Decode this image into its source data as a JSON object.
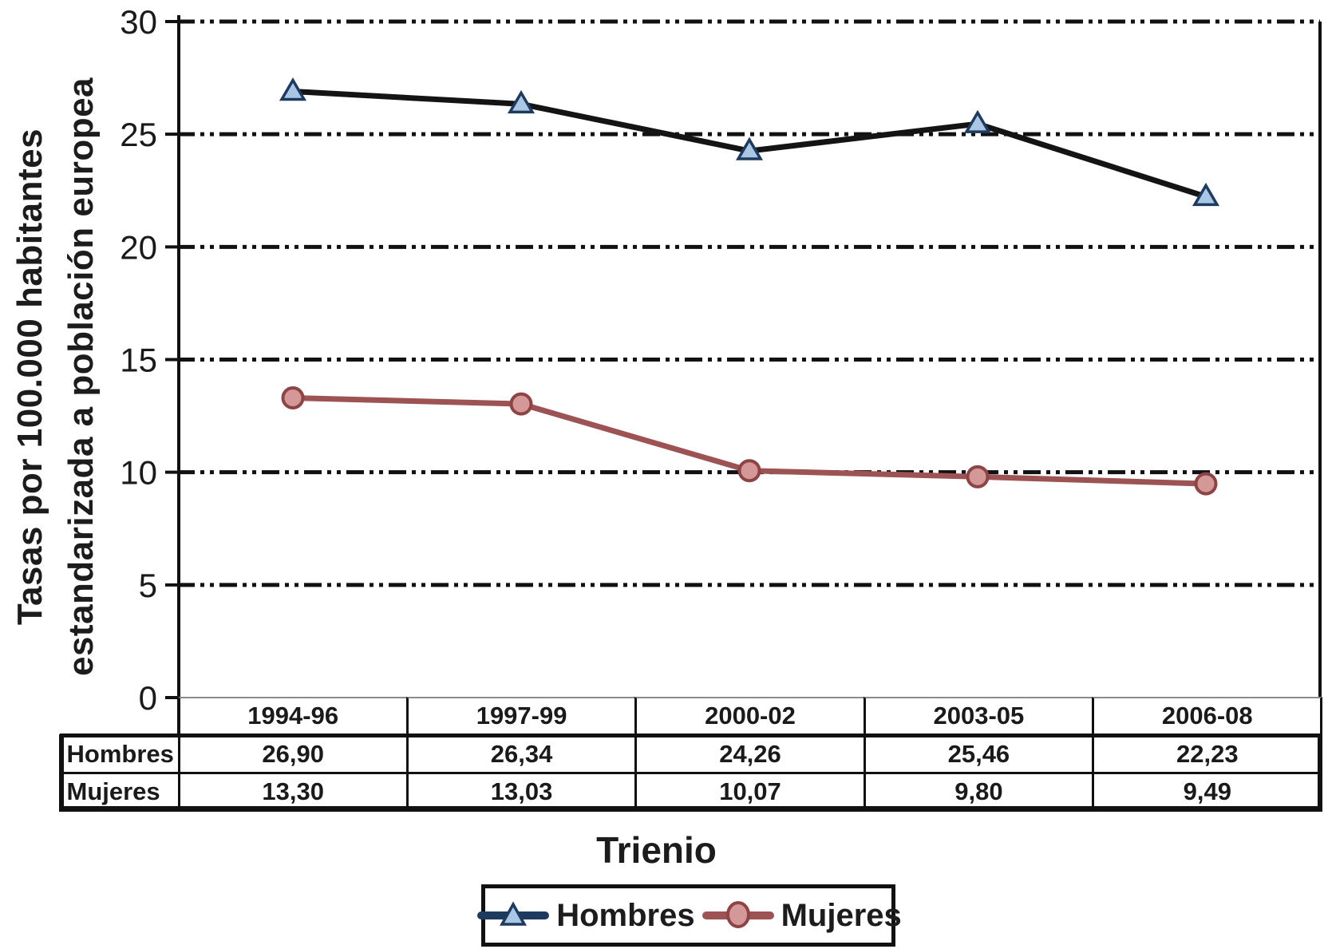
{
  "figure": {
    "y_axis_title_line1": "Tasas por 100.000 habitantes",
    "y_axis_title_line2": "estandarizada a población europea",
    "x_axis_title": "Trienio",
    "background": "#ffffff"
  },
  "chart_data": {
    "type": "line",
    "categories": [
      "1994-96",
      "1997-99",
      "2000-02",
      "2003-05",
      "2006-08"
    ],
    "series": [
      {
        "name": "Hombres",
        "values": [
          26.9,
          26.34,
          24.26,
          25.46,
          22.23
        ],
        "marker": "triangle",
        "line_color": "#141414",
        "legend_line_color": "#1f3a5f",
        "marker_fill": "#a9c7e5",
        "marker_stroke": "#1f3a5f"
      },
      {
        "name": "Mujeres",
        "values": [
          13.3,
          13.03,
          10.07,
          9.8,
          9.49
        ],
        "marker": "circle",
        "line_color": "#9d5353",
        "legend_line_color": "#9d5353",
        "marker_fill": "#d49898",
        "marker_stroke": "#8e4444"
      }
    ],
    "title": "",
    "xlabel": "Trienio",
    "ylabel": "Tasas por 100.000 habitantes estandarizada a población europea",
    "ylim": [
      0,
      30
    ],
    "yticks": [
      0,
      5,
      10,
      15,
      20,
      25,
      30
    ],
    "grid": "horizontal dash-dot black",
    "legend_position": "bottom"
  },
  "table": {
    "row_labels": [
      "Hombres",
      "Mujeres"
    ],
    "rows": [
      [
        "26,90",
        "26,34",
        "24,26",
        "25,46",
        "22,23"
      ],
      [
        "13,30",
        "13,03",
        "10,07",
        "9,80",
        "9,49"
      ]
    ]
  },
  "legend": {
    "entries": [
      {
        "label": "Hombres"
      },
      {
        "label": "Mujeres"
      }
    ]
  },
  "colors": {
    "axis": "#111111",
    "zero_axis": "#8c8c8c",
    "gridline": "#111111",
    "text": "#1a1a1a"
  }
}
